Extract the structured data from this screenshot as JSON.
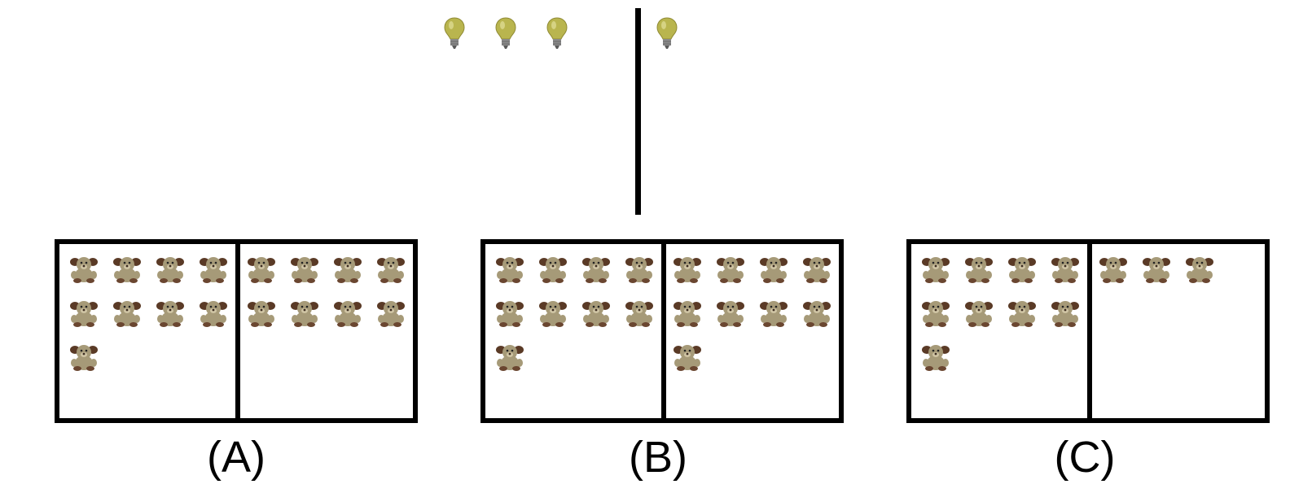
{
  "problem": {
    "top_bulbs_left_count": 3,
    "top_bulbs_right_count": 1,
    "bulb_color": "#b9b54e",
    "bear_color": "#a69a78"
  },
  "options": [
    {
      "label": "(A)",
      "left_count": 9,
      "right_count": 8
    },
    {
      "label": "(B)",
      "left_count": 9,
      "right_count": 9
    },
    {
      "label": "(C)",
      "left_count": 9,
      "right_count": 3
    }
  ]
}
